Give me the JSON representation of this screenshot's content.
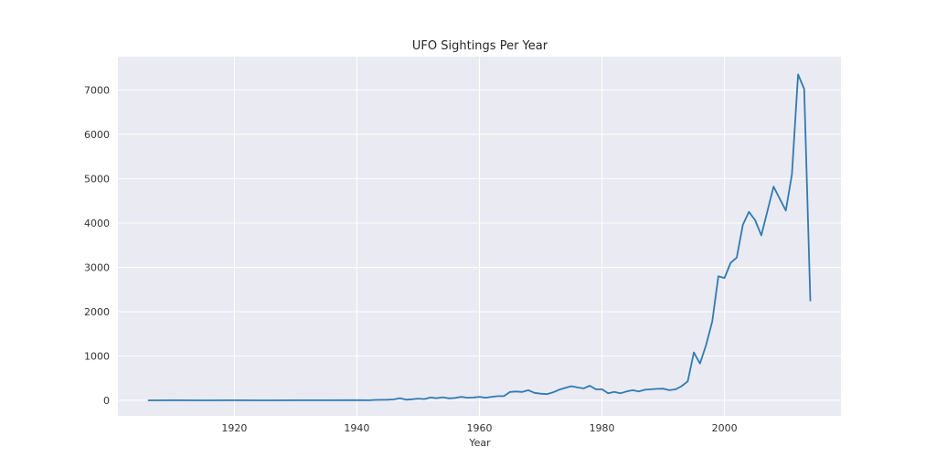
{
  "colors": {
    "plot_background": "#eaeaf2",
    "grid": "#ffffff",
    "line": "#2f7bb3",
    "text": "#333333"
  },
  "chart_data": {
    "type": "line",
    "title": "UFO Sightings Per Year",
    "xlabel": "Year",
    "ylabel": "",
    "xlim": [
      1901,
      2019
    ],
    "ylim": [
      -350,
      7750
    ],
    "xticks": [
      1920,
      1940,
      1960,
      1980,
      2000
    ],
    "yticks": [
      0,
      1000,
      2000,
      3000,
      4000,
      5000,
      6000,
      7000
    ],
    "grid": true,
    "series": [
      {
        "name": "sightings",
        "x": [
          1906,
          1910,
          1915,
          1920,
          1925,
          1930,
          1935,
          1940,
          1942,
          1943,
          1945,
          1946,
          1947,
          1948,
          1949,
          1950,
          1951,
          1952,
          1953,
          1954,
          1955,
          1956,
          1957,
          1958,
          1959,
          1960,
          1961,
          1962,
          1963,
          1964,
          1965,
          1966,
          1967,
          1968,
          1969,
          1970,
          1971,
          1972,
          1973,
          1974,
          1975,
          1976,
          1977,
          1978,
          1979,
          1980,
          1981,
          1982,
          1983,
          1984,
          1985,
          1986,
          1987,
          1988,
          1989,
          1990,
          1991,
          1992,
          1993,
          1994,
          1995,
          1996,
          1997,
          1998,
          1999,
          2000,
          2001,
          2002,
          2003,
          2004,
          2005,
          2006,
          2007,
          2008,
          2009,
          2010,
          2011,
          2012,
          2013,
          2014
        ],
        "values": [
          1,
          2,
          1,
          2,
          1,
          2,
          3,
          5,
          3,
          10,
          15,
          20,
          50,
          15,
          25,
          40,
          30,
          65,
          50,
          70,
          45,
          55,
          80,
          60,
          65,
          80,
          60,
          80,
          95,
          95,
          190,
          200,
          190,
          230,
          170,
          150,
          140,
          180,
          240,
          280,
          320,
          290,
          270,
          330,
          250,
          250,
          160,
          190,
          160,
          200,
          230,
          200,
          240,
          250,
          260,
          265,
          230,
          250,
          320,
          430,
          1080,
          830,
          1250,
          1780,
          2800,
          2760,
          3100,
          3220,
          3960,
          4250,
          4060,
          3720,
          4270,
          4820,
          4550,
          4280,
          5100,
          7350,
          7020,
          2250
        ]
      }
    ]
  }
}
